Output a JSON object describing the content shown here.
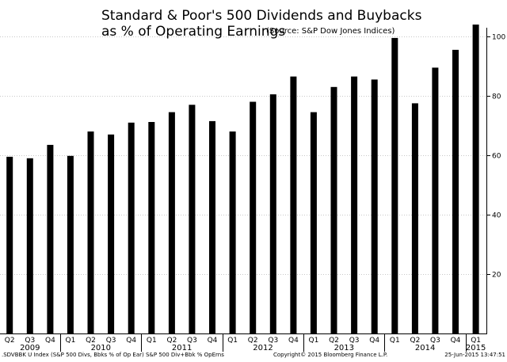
{
  "chart_data": {
    "type": "bar",
    "title": "Standard & Poor's 500 Dividends and Buybacks",
    "title_line2": "as % of Operating Earnings",
    "subtitle": "(Source: S&P Dow Jones Indices)",
    "xlabel": "",
    "ylabel": "",
    "ylim": [
      0,
      105
    ],
    "yticks": [
      20,
      40,
      60,
      80,
      100
    ],
    "grid": true,
    "legend": "none",
    "bar_color": "#000000",
    "categories": [
      "Q2",
      "Q3",
      "Q4",
      "Q1",
      "Q2",
      "Q3",
      "Q4",
      "Q1",
      "Q2",
      "Q3",
      "Q4",
      "Q1",
      "Q2",
      "Q3",
      "Q4",
      "Q1",
      "Q2",
      "Q3",
      "Q4",
      "Q1",
      "Q2",
      "Q3",
      "Q4",
      "Q1"
    ],
    "values": [
      59.5,
      59,
      63.5,
      59.8,
      68,
      67,
      71,
      71.2,
      74.5,
      77,
      71.5,
      68,
      78,
      80.5,
      86.5,
      74.5,
      83,
      86.5,
      85.5,
      99.5,
      77.5,
      89.5,
      95.5,
      104
    ],
    "year_groups": [
      {
        "label": "2009",
        "start": 0,
        "end": 2
      },
      {
        "label": "2010",
        "start": 3,
        "end": 6
      },
      {
        "label": "2011",
        "start": 7,
        "end": 10
      },
      {
        "label": "2012",
        "start": 11,
        "end": 14
      },
      {
        "label": "2013",
        "start": 15,
        "end": 18
      },
      {
        "label": "2014",
        "start": 19,
        "end": 22
      },
      {
        "label": "2015",
        "start": 23,
        "end": 23
      }
    ]
  },
  "footer": {
    "left": ".SDVBBK U Index (S&P 500 Divs, Bbks % of Op Ear) S&P 500 Div+Bbk % OpErns",
    "center": "Copyright© 2015 Bloomberg Finance L.P.",
    "right": "25-Jun-2015 13:47:51"
  }
}
